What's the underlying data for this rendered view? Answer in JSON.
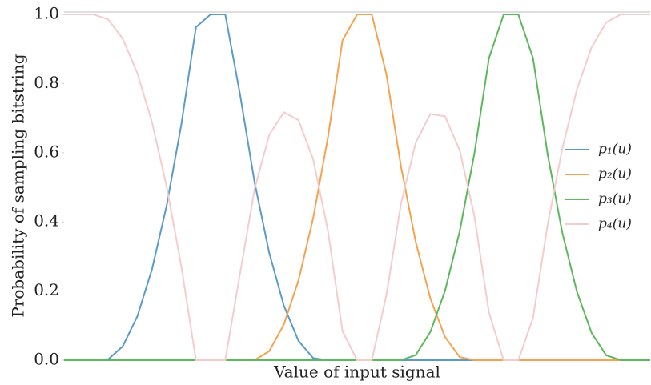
{
  "chart_data": {
    "type": "line",
    "xlabel": "Value of input signal",
    "ylabel": "Probability of sampling bitstring",
    "x": [
      0,
      2.5,
      5,
      7.5,
      10,
      12.5,
      15,
      17.5,
      20,
      22.5,
      25,
      27.5,
      30,
      32.5,
      35,
      37.5,
      40,
      42.5,
      45,
      47.5,
      50,
      52.5,
      55,
      57.5,
      60,
      62.5,
      65,
      67.5,
      70,
      72.5,
      75,
      77.5,
      80,
      82.5,
      85,
      87.5,
      90,
      92.5,
      95,
      97.5,
      100
    ],
    "xlim": [
      0,
      100
    ],
    "ylim": [
      0,
      1.0
    ],
    "yticks": [
      {
        "value": 0,
        "label": "0.0"
      },
      0.2,
      0.4,
      0.6,
      0.8,
      {
        "value": 1,
        "label": "1.0"
      }
    ],
    "legend": "right",
    "series": [
      {
        "name": "p₁(u)",
        "color": "#5a9bc9",
        "values": [
          0,
          0,
          0,
          0.002,
          0.04,
          0.127,
          0.263,
          0.447,
          0.681,
          0.963,
          1,
          1,
          0.771,
          0.515,
          0.311,
          0.158,
          0.056,
          0.006,
          0,
          0,
          0,
          0,
          0,
          0,
          0,
          0,
          0,
          0,
          0,
          0,
          0,
          0,
          0,
          0,
          0,
          0,
          0,
          0,
          0,
          0,
          0
        ]
      },
      {
        "name": "p₂(u)",
        "color": "#f7a24e",
        "values": [
          0,
          0,
          0,
          0,
          0,
          0,
          0,
          0,
          0,
          0,
          0,
          0,
          0,
          0,
          0.026,
          0.103,
          0.231,
          0.411,
          0.642,
          0.925,
          1,
          1,
          0.826,
          0.558,
          0.342,
          0.178,
          0.067,
          0.009,
          0,
          0,
          0,
          0,
          0,
          0,
          0,
          0,
          0,
          0,
          0,
          0,
          0
        ]
      },
      {
        "name": "p₃(u)",
        "color": "#5cb85c",
        "values": [
          0,
          0,
          0,
          0,
          0,
          0,
          0,
          0,
          0,
          0,
          0,
          0,
          0,
          0,
          0,
          0,
          0,
          0,
          0,
          0,
          0,
          0,
          0,
          0,
          0.015,
          0.082,
          0.201,
          0.373,
          0.597,
          0.874,
          1,
          1,
          0.874,
          0.595,
          0.369,
          0.198,
          0.079,
          0.014,
          0,
          0,
          0
        ]
      },
      {
        "name": "p₄(u)",
        "color": "#f5cccc",
        "values": [
          1,
          1,
          1,
          0.986,
          0.93,
          0.83,
          0.688,
          0.502,
          0.272,
          0,
          0,
          0,
          0.248,
          0.494,
          0.651,
          0.717,
          0.694,
          0.581,
          0.377,
          0.084,
          0,
          0,
          0.189,
          0.454,
          0.629,
          0.712,
          0.705,
          0.607,
          0.418,
          0.137,
          0,
          0,
          0.122,
          0.392,
          0.612,
          0.783,
          0.905,
          0.977,
          1,
          1,
          1
        ]
      }
    ]
  }
}
